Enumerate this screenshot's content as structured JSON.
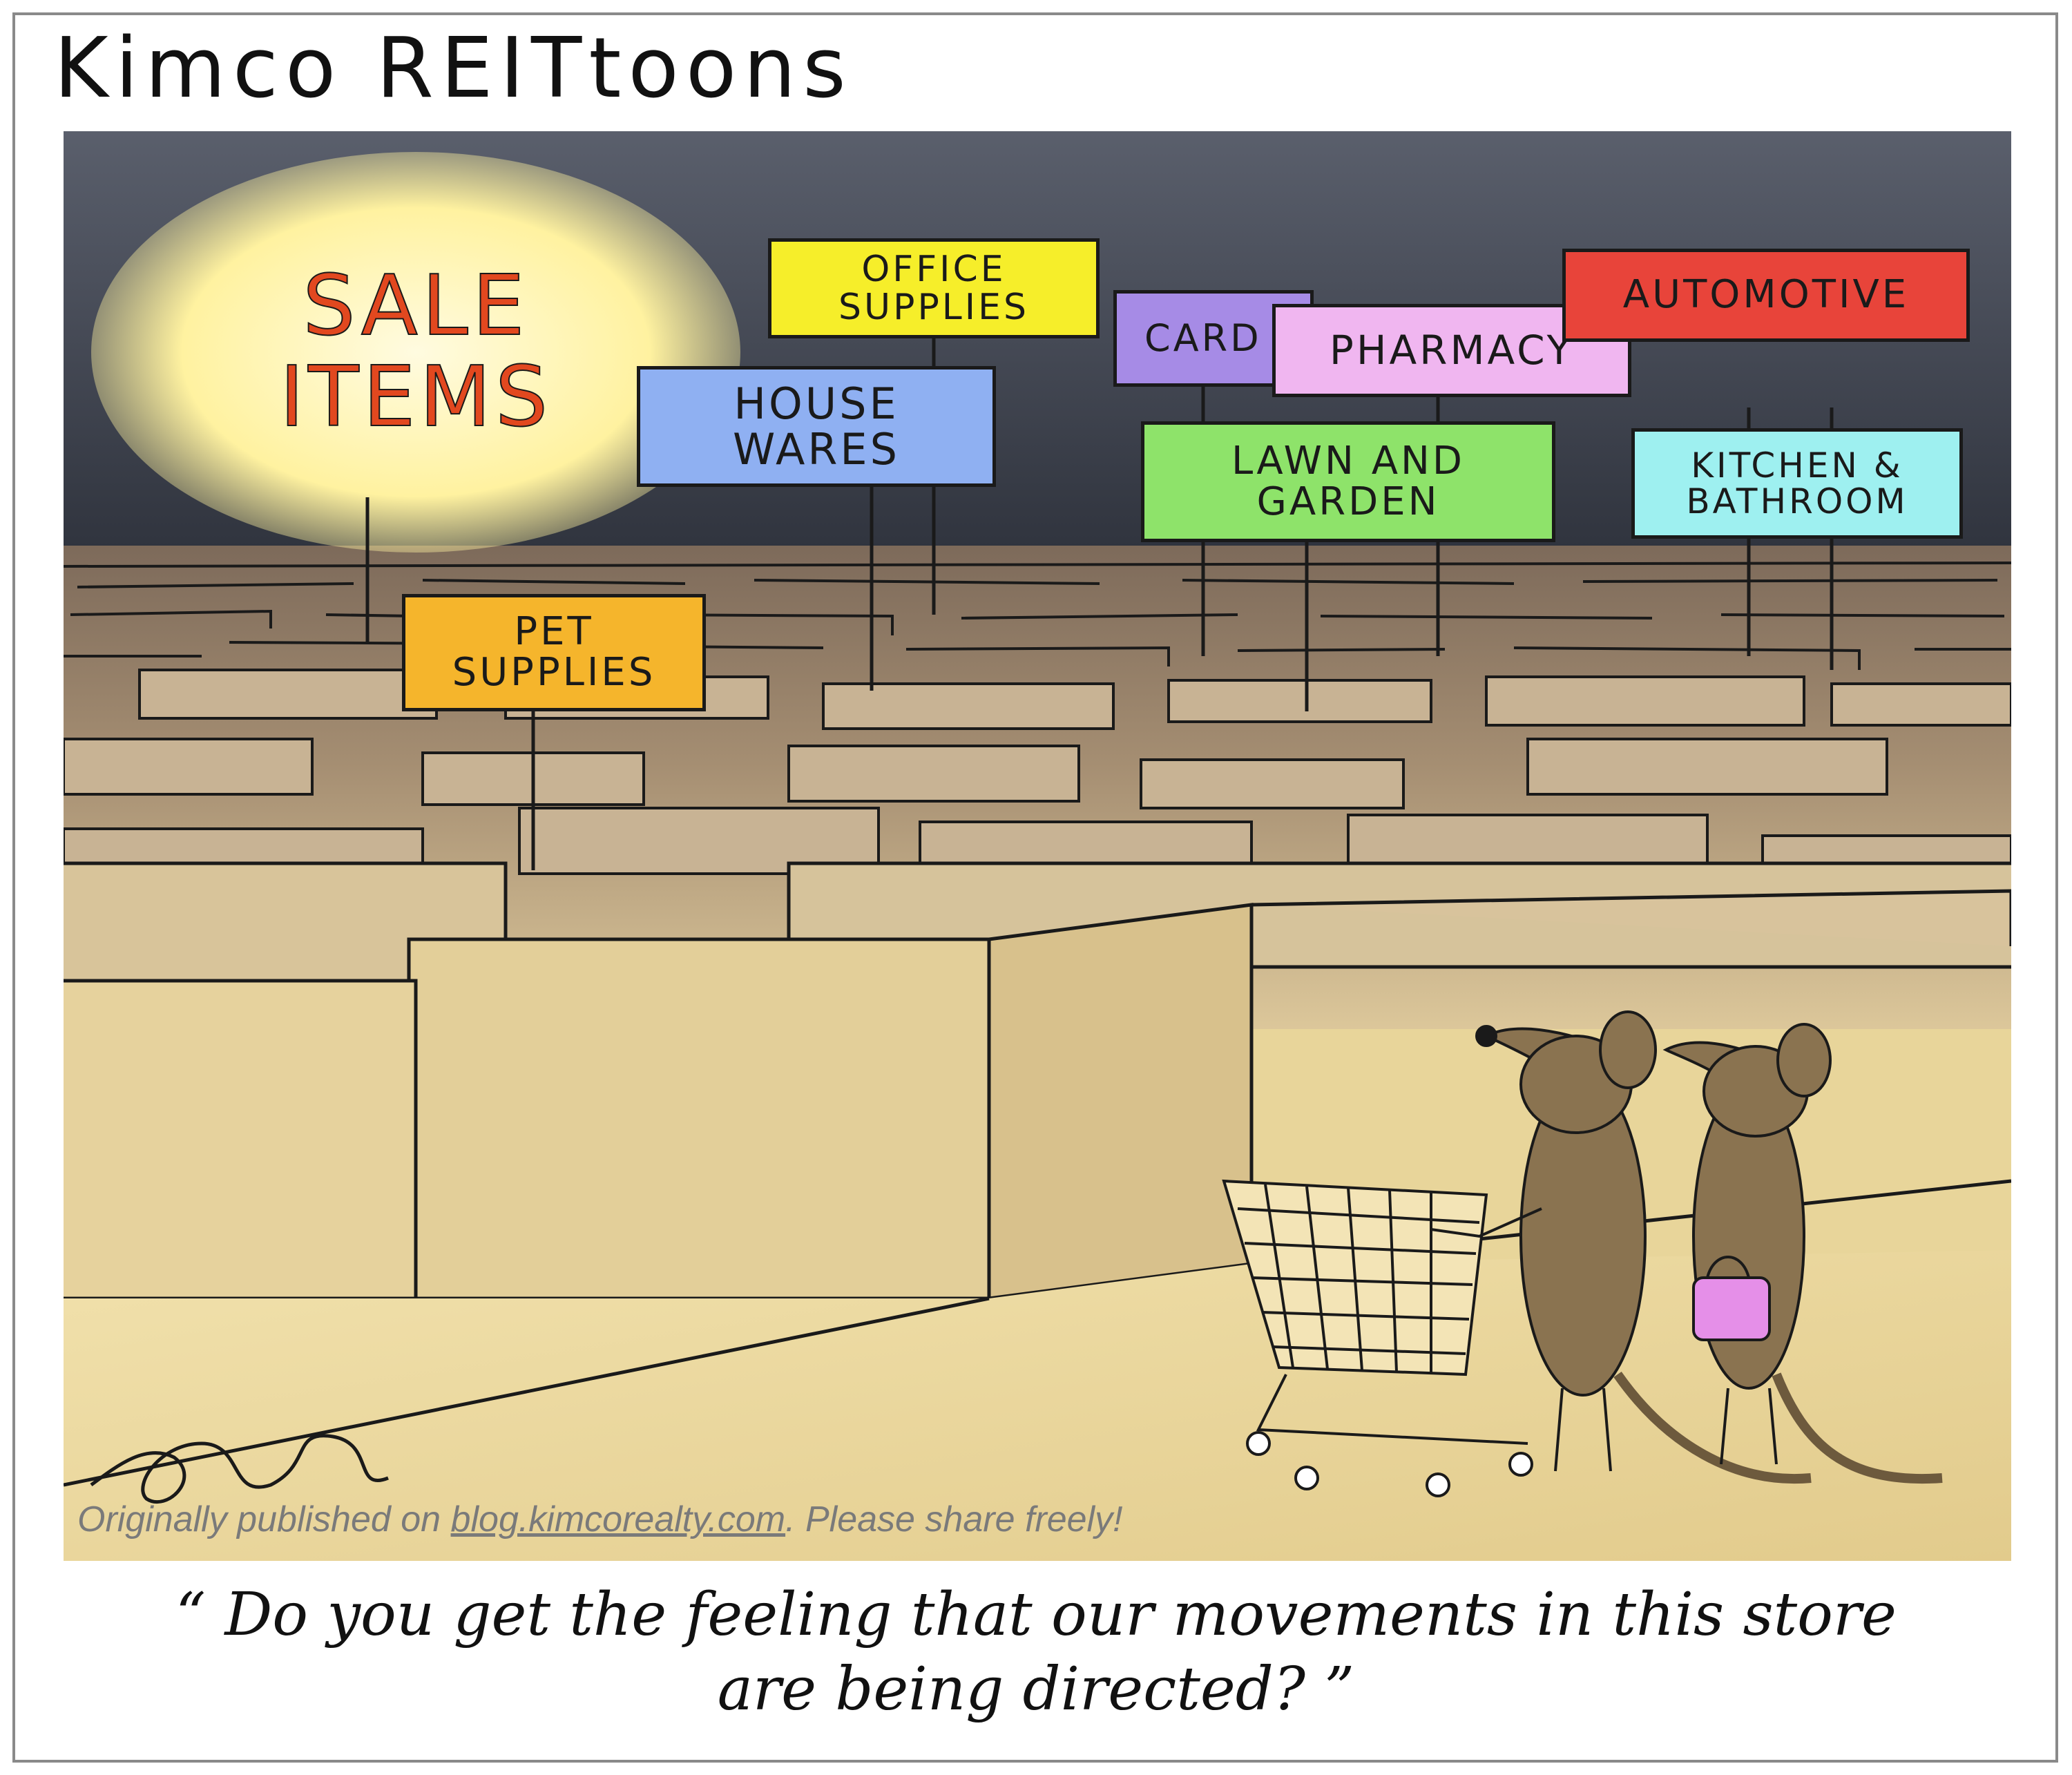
{
  "title": "Kimco REITtoons",
  "signs": {
    "sale": "SALE\nITEMS",
    "office_supplies": "OFFICE\nSUPPLIES",
    "house_wares": "HOUSE\nWARES",
    "pet_supplies": "PET\nSUPPLIES",
    "cards": "CARD",
    "pharmacy": "PHARMACY",
    "lawn_and_garden": "LAWN AND\nGARDEN",
    "automotive": "AUTOMOTIVE",
    "kitchen_bathroom": "KITCHEN &\nBATHROOM"
  },
  "colors": {
    "sky": "#3b3f4a",
    "maze_far": "#8a7563",
    "maze_near": "#e8d59a",
    "sale_glow": "#fff6b0",
    "sale_text": "#e2481f",
    "office_supplies": "#f6ee2a",
    "house_wares": "#8fb0f2",
    "pet_supplies": "#f5b52c",
    "cards": "#a68be6",
    "pharmacy": "#f0b6f0",
    "lawn_and_garden": "#8ee36a",
    "automotive": "#e8443a",
    "kitchen_bathroom": "#9ef0f0",
    "mouse": "#8a7350",
    "purse": "#e58fe8"
  },
  "credit": {
    "prefix": "Originally published on ",
    "link": "blog.kimcorealty.com",
    "suffix": ". Please share freely!"
  },
  "caption": "“ Do you get the feeling that our movements in this store are being directed? ”"
}
